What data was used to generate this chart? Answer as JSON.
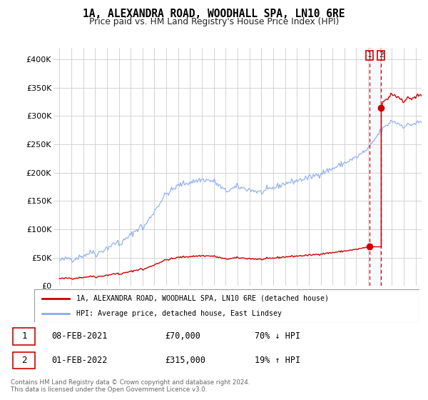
{
  "title": "1A, ALEXANDRA ROAD, WOODHALL SPA, LN10 6RE",
  "subtitle": "Price paid vs. HM Land Registry's House Price Index (HPI)",
  "legend_line1": "1A, ALEXANDRA ROAD, WOODHALL SPA, LN10 6RE (detached house)",
  "legend_line2": "HPI: Average price, detached house, East Lindsey",
  "footer": "Contains HM Land Registry data © Crown copyright and database right 2024.\nThis data is licensed under the Open Government Licence v3.0.",
  "annotation1": {
    "num": "1",
    "date": "08-FEB-2021",
    "price": "£70,000",
    "change": "70% ↓ HPI"
  },
  "annotation2": {
    "num": "2",
    "date": "01-FEB-2022",
    "price": "£315,000",
    "change": "19% ↑ HPI"
  },
  "hpi_color": "#88aaee",
  "price_color": "#cc0000",
  "annotation_color": "#cc0000",
  "shade_color": "#ddeeff",
  "ylim": [
    0,
    420000
  ],
  "yticks": [
    0,
    50000,
    100000,
    150000,
    200000,
    250000,
    300000,
    350000,
    400000
  ],
  "ytick_labels": [
    "£0",
    "£50K",
    "£100K",
    "£150K",
    "£200K",
    "£250K",
    "£300K",
    "£350K",
    "£400K"
  ],
  "sale1_year": 2021.1,
  "sale1_y": 70000,
  "sale2_year": 2022.1,
  "sale2_y": 315000,
  "xlim_left": 1994.5,
  "xlim_right": 2025.5
}
